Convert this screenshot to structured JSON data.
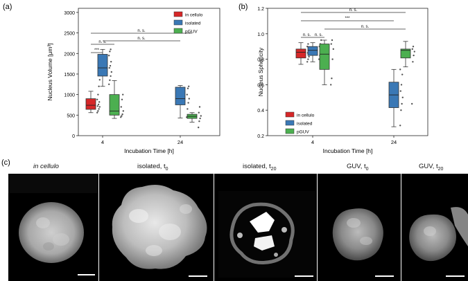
{
  "panels": {
    "a_letter": "(a)",
    "b_letter": "(b)",
    "c_letter": "(c)"
  },
  "chart_data": [
    {
      "type": "box",
      "panel": "(a)",
      "xlabel": "Incubation Time [h]",
      "ylabel": "Nucleus Volume [μm³]",
      "categories": [
        "4",
        "24"
      ],
      "ylim": [
        0,
        3100
      ],
      "yticks": [
        "0",
        "500",
        "1000",
        "1500",
        "2000",
        "2500",
        "3000"
      ],
      "legend": [
        "in cellulo",
        "isolated",
        "pGUV"
      ],
      "legend_position": "top-right",
      "series": [
        {
          "name": "in cellulo",
          "color": "#d62728",
          "boxes": [
            {
              "x": "4",
              "min": 560,
              "q1": 640,
              "median": 740,
              "q3": 900,
              "max": 1080,
              "points": [
                560,
                600,
                650,
                700,
                720,
                760,
                820,
                880,
                1000,
                1200,
                1360
              ]
            }
          ]
        },
        {
          "name": "isolated",
          "color": "#3a78b5",
          "boxes": [
            {
              "x": "4",
              "min": 1200,
              "q1": 1450,
              "median": 1650,
              "q3": 1980,
              "max": 2100,
              "points": [
                1250,
                1350,
                1450,
                1550,
                1650,
                1700,
                1800,
                1950,
                2050,
                2100
              ]
            },
            {
              "x": "24",
              "min": 430,
              "q1": 750,
              "median": 900,
              "q3": 1180,
              "max": 1220,
              "points": [
                450,
                650,
                800,
                900,
                1000,
                1150,
                1200
              ]
            }
          ]
        },
        {
          "name": "pGUV",
          "color": "#4caf50",
          "boxes": [
            {
              "x": "4",
              "min": 420,
              "q1": 500,
              "median": 600,
              "q3": 1000,
              "max": 1340,
              "points": [
                450,
                480,
                520,
                600,
                700,
                880,
                1000
              ]
            },
            {
              "x": "24",
              "min": 330,
              "q1": 420,
              "median": 470,
              "q3": 520,
              "max": 560,
              "points": [
                200,
                350,
                420,
                480,
                560,
                700
              ]
            }
          ]
        }
      ],
      "significance": [
        {
          "label": "***",
          "from": "in cellulo@4",
          "to": "isolated@4"
        },
        {
          "label": "n. s.",
          "from": "in cellulo@4",
          "to": "pGUV@4"
        },
        {
          "label": "n. s.",
          "from": "isolated@4",
          "to": "isolated@24"
        },
        {
          "label": "n. s.",
          "from": "in cellulo@4",
          "to": "pGUV@24"
        }
      ]
    },
    {
      "type": "box",
      "panel": "(b)",
      "xlabel": "Incubation Time [h]",
      "ylabel": "Nucleus Sphericity",
      "categories": [
        "4",
        "24"
      ],
      "ylim": [
        0.2,
        1.2
      ],
      "yticks": [
        "0.2",
        "0.4",
        "0.6",
        "0.8",
        "1.0",
        "1.2"
      ],
      "legend": [
        "in cellulo",
        "isolated",
        "pGUV"
      ],
      "legend_position": "lower-left",
      "series": [
        {
          "name": "in cellulo",
          "color": "#d62728",
          "boxes": [
            {
              "x": "4",
              "min": 0.76,
              "q1": 0.81,
              "median": 0.855,
              "q3": 0.88,
              "max": 0.93,
              "points": [
                0.78,
                0.8,
                0.82,
                0.84,
                0.85,
                0.87,
                0.88,
                0.9,
                0.92
              ]
            }
          ]
        },
        {
          "name": "isolated",
          "color": "#3a78b5",
          "boxes": [
            {
              "x": "4",
              "min": 0.78,
              "q1": 0.83,
              "median": 0.87,
              "q3": 0.9,
              "max": 0.93,
              "points": [
                0.8,
                0.83,
                0.86,
                0.88,
                0.9,
                0.92,
                0.95
              ]
            },
            {
              "x": "24",
              "min": 0.27,
              "q1": 0.42,
              "median": 0.52,
              "q3": 0.62,
              "max": 0.72,
              "points": [
                0.28,
                0.4,
                0.45,
                0.5,
                0.55,
                0.6,
                0.68,
                0.72
              ]
            }
          ]
        },
        {
          "name": "pGUV",
          "color": "#4caf50",
          "boxes": [
            {
              "x": "4",
              "min": 0.6,
              "q1": 0.72,
              "median": 0.84,
              "q3": 0.92,
              "max": 0.95,
              "points": [
                0.6,
                0.65,
                0.8,
                0.88,
                0.92,
                0.95
              ]
            },
            {
              "x": "24",
              "min": 0.74,
              "q1": 0.81,
              "median": 0.87,
              "q3": 0.88,
              "max": 0.94,
              "points": [
                0.45,
                0.78,
                0.83,
                0.86,
                0.88,
                0.9
              ]
            }
          ]
        }
      ],
      "significance": [
        {
          "label": "n. s.",
          "from": "in cellulo@4",
          "to": "isolated@4"
        },
        {
          "label": "n. s.",
          "from": "isolated@4",
          "to": "pGUV@4"
        },
        {
          "label": "n. s.",
          "from": "pGUV@4",
          "to": "pGUV@24"
        },
        {
          "label": "***",
          "from": "in cellulo@4",
          "to": "isolated@24"
        },
        {
          "label": "n. s.",
          "from": "in cellulo@4",
          "to": "pGUV@24"
        }
      ]
    }
  ],
  "micrographs": [
    {
      "title_main": "in cellulo",
      "title_sub": "",
      "italic": true
    },
    {
      "title_main": "isolated, t",
      "title_sub": "0",
      "italic": false
    },
    {
      "title_main": "isolated, t",
      "title_sub": "20",
      "italic": false
    },
    {
      "title_main": "GUV, t",
      "title_sub": "0",
      "italic": false
    },
    {
      "title_main": "GUV, t",
      "title_sub": "20",
      "italic": false
    }
  ]
}
